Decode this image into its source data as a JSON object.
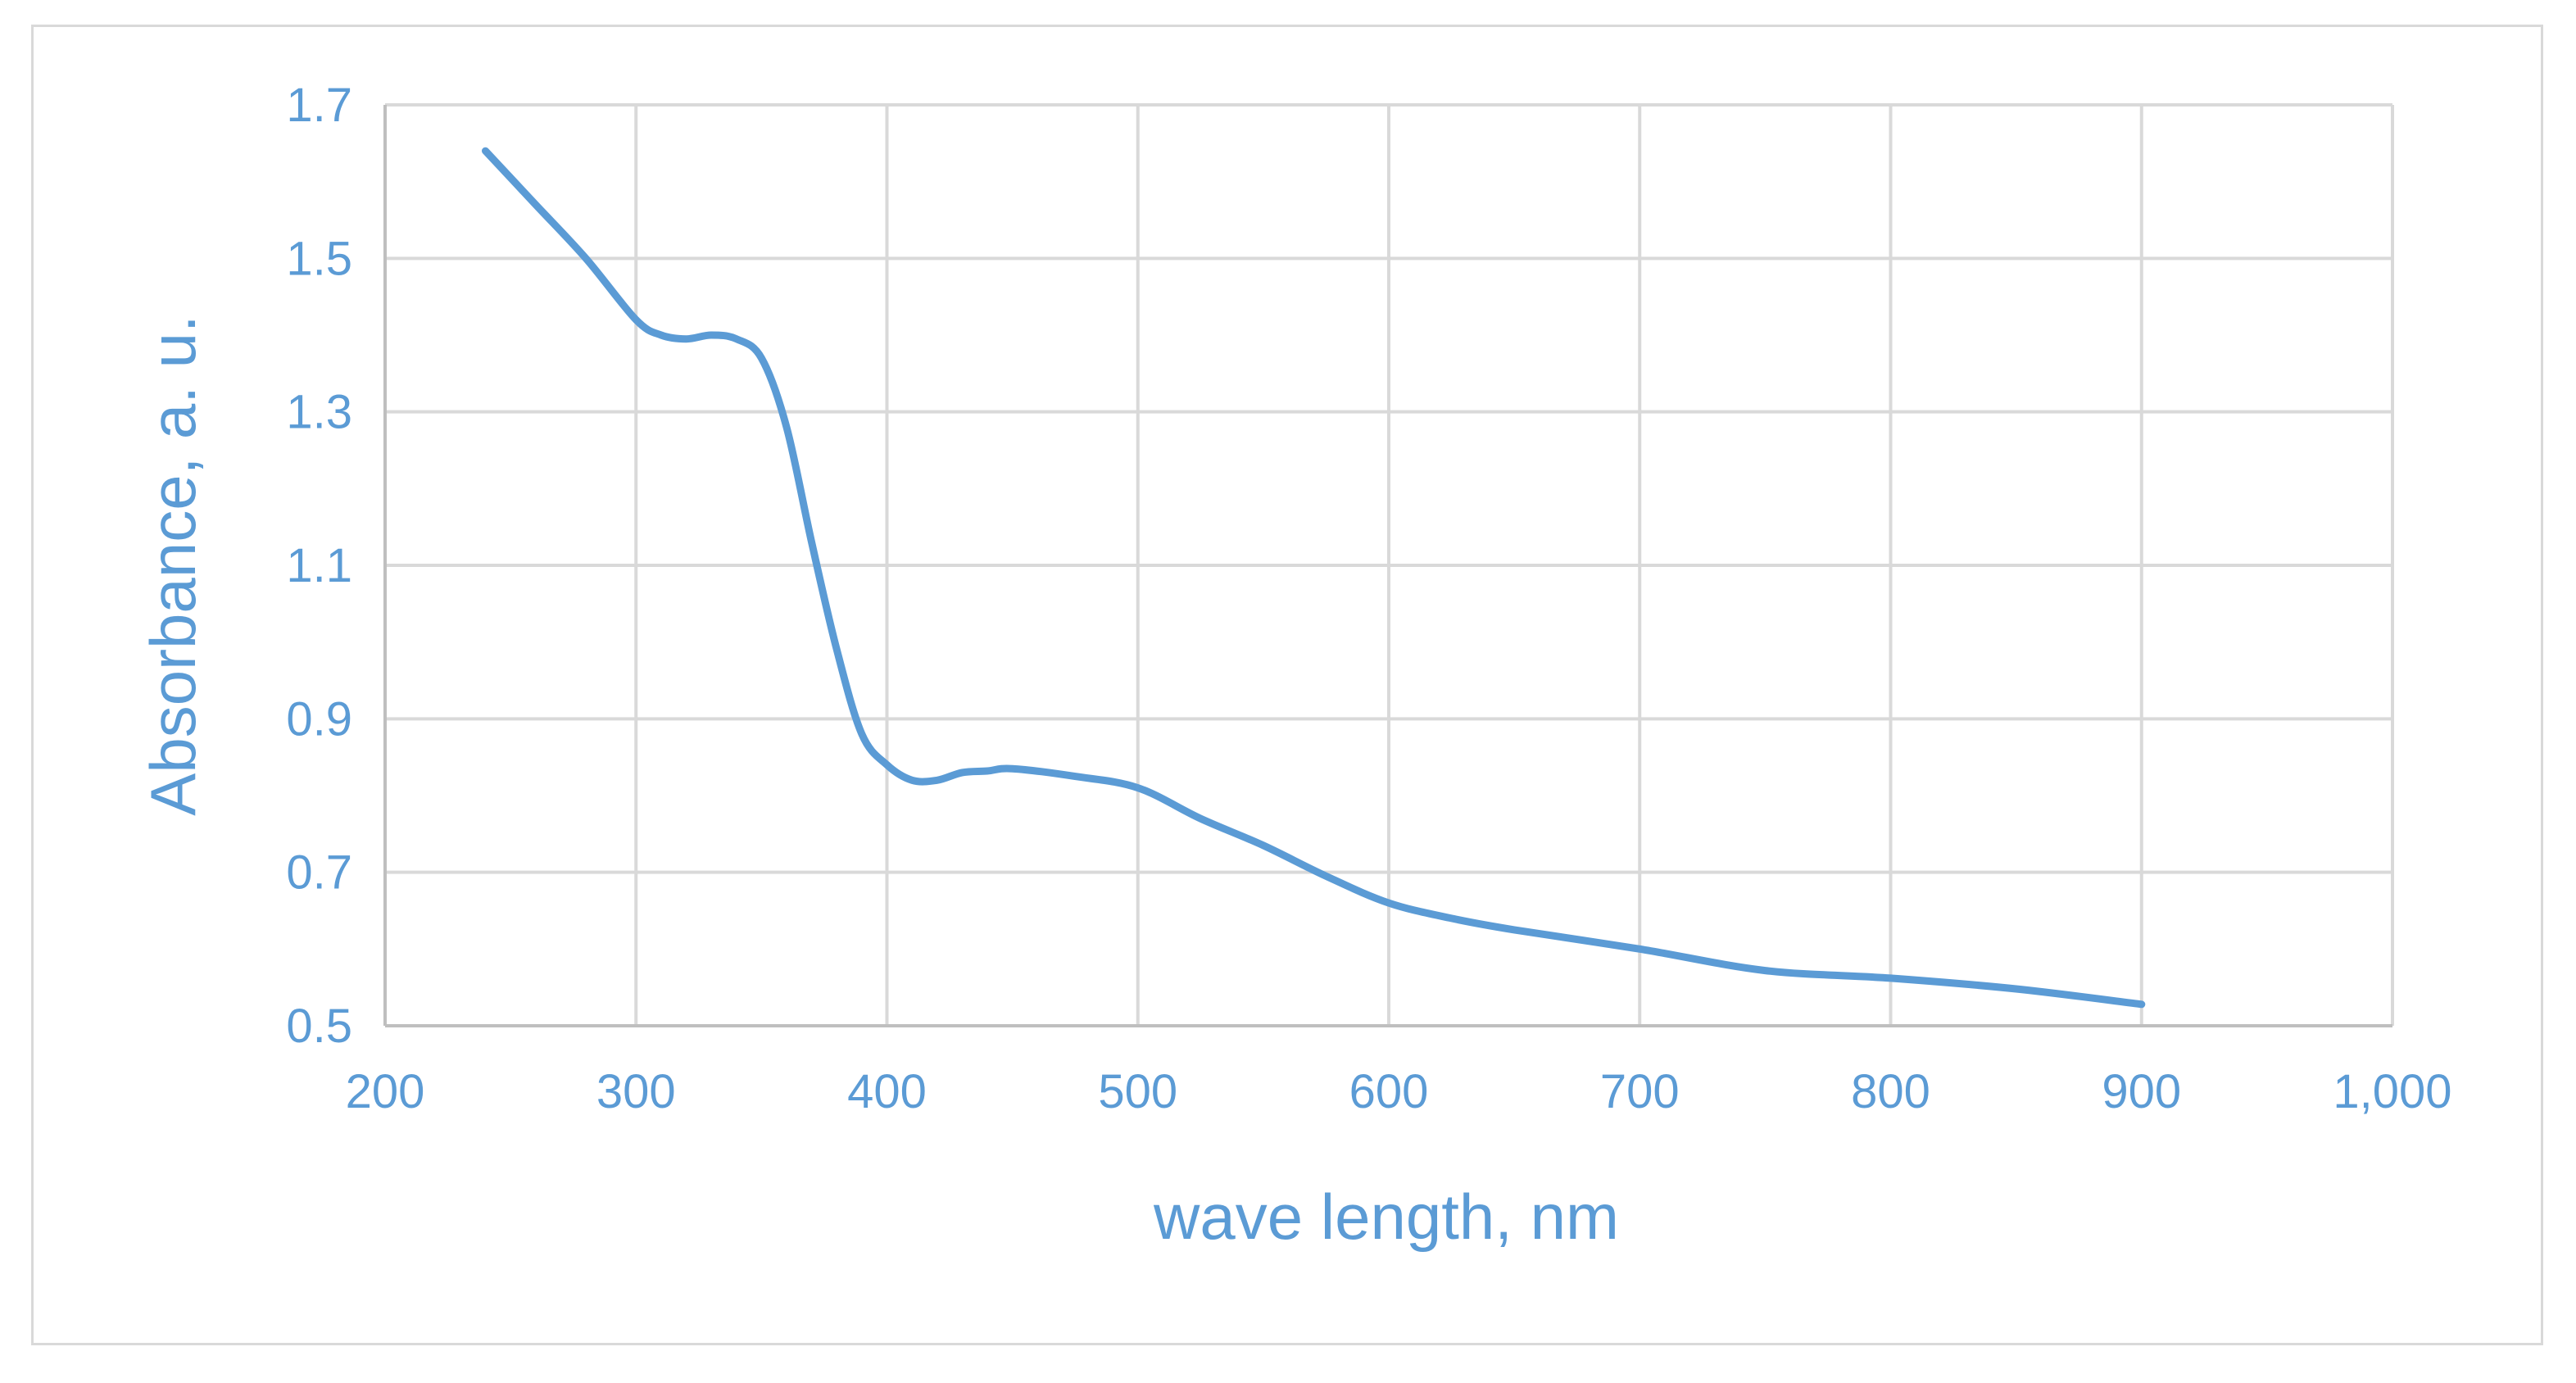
{
  "chart_data": {
    "type": "line",
    "title": "",
    "xlabel": "wave length, nm",
    "ylabel": "Absorbance, a. u.",
    "xlim": [
      200,
      1000
    ],
    "ylim": [
      0.5,
      1.7
    ],
    "x_ticks": [
      "200",
      "300",
      "400",
      "500",
      "600",
      "700",
      "800",
      "900",
      "1,000"
    ],
    "y_ticks": [
      "0.5",
      "0.7",
      "0.9",
      "1.1",
      "1.3",
      "1.5",
      "1.7"
    ],
    "x_tick_values": [
      200,
      300,
      400,
      500,
      600,
      700,
      800,
      900,
      1000
    ],
    "y_tick_values": [
      0.5,
      0.7,
      0.9,
      1.1,
      1.3,
      1.5,
      1.7
    ],
    "grid": true,
    "legend": "none",
    "series": [
      {
        "color": "#5b9bd5",
        "x": [
          240,
          260,
          280,
          300,
          310,
          320,
          330,
          340,
          350,
          360,
          370,
          380,
          390,
          400,
          410,
          420,
          430,
          440,
          450,
          475,
          500,
          525,
          550,
          575,
          600,
          625,
          650,
          700,
          750,
          800,
          850,
          900
        ],
        "y": [
          1.64,
          1.57,
          1.5,
          1.42,
          1.4,
          1.395,
          1.4,
          1.395,
          1.37,
          1.28,
          1.13,
          0.99,
          0.88,
          0.84,
          0.82,
          0.82,
          0.83,
          0.832,
          0.835,
          0.825,
          0.81,
          0.77,
          0.735,
          0.695,
          0.66,
          0.64,
          0.625,
          0.6,
          0.572,
          0.562,
          0.548,
          0.528
        ]
      }
    ]
  },
  "colors": {
    "line": "#5b9bd5",
    "text": "#5b9bd5",
    "grid": "#d9d9d9",
    "axis": "#bfbfbf"
  }
}
